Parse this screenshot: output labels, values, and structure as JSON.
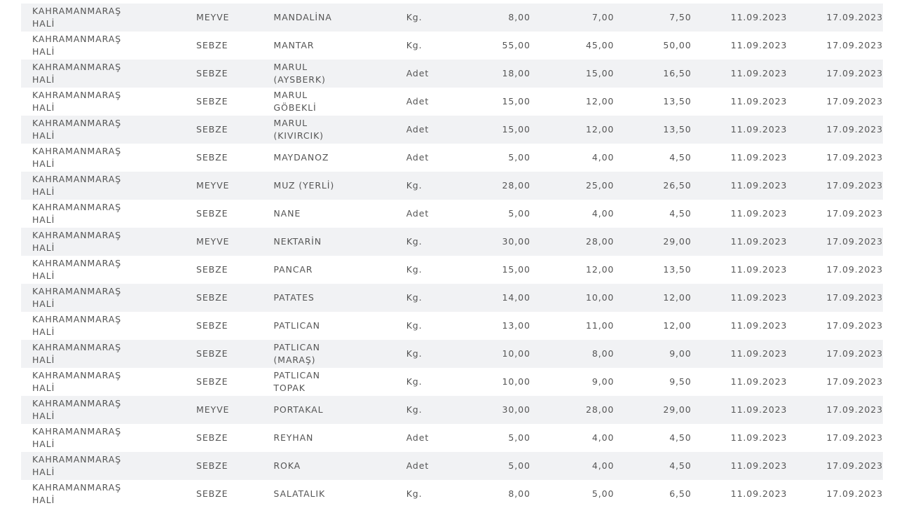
{
  "rows": [
    [
      "KAHRAMANMARAŞ\nHALİ",
      "MEYVE",
      "MANDALİNA",
      "Kg.",
      "8,00",
      "7,00",
      "7,50",
      "11.09.2023",
      "17.09.2023"
    ],
    [
      "KAHRAMANMARAŞ\nHALİ",
      "SEBZE",
      "MANTAR",
      "Kg.",
      "55,00",
      "45,00",
      "50,00",
      "11.09.2023",
      "17.09.2023"
    ],
    [
      "KAHRAMANMARAŞ\nHALİ",
      "SEBZE",
      "MARUL\n(AYSBERK)",
      "Adet",
      "18,00",
      "15,00",
      "16,50",
      "11.09.2023",
      "17.09.2023"
    ],
    [
      "KAHRAMANMARAŞ\nHALİ",
      "SEBZE",
      "MARUL\nGÖBEKLİ",
      "Adet",
      "15,00",
      "12,00",
      "13,50",
      "11.09.2023",
      "17.09.2023"
    ],
    [
      "KAHRAMANMARAŞ\nHALİ",
      "SEBZE",
      "MARUL\n(KIVIRCIK)",
      "Adet",
      "15,00",
      "12,00",
      "13,50",
      "11.09.2023",
      "17.09.2023"
    ],
    [
      "KAHRAMANMARAŞ\nHALİ",
      "SEBZE",
      "MAYDANOZ",
      "Adet",
      "5,00",
      "4,00",
      "4,50",
      "11.09.2023",
      "17.09.2023"
    ],
    [
      "KAHRAMANMARAŞ\nHALİ",
      "MEYVE",
      "MUZ (YERLİ)",
      "Kg.",
      "28,00",
      "25,00",
      "26,50",
      "11.09.2023",
      "17.09.2023"
    ],
    [
      "KAHRAMANMARAŞ\nHALİ",
      "SEBZE",
      "NANE",
      "Adet",
      "5,00",
      "4,00",
      "4,50",
      "11.09.2023",
      "17.09.2023"
    ],
    [
      "KAHRAMANMARAŞ\nHALİ",
      "MEYVE",
      "NEKTARİN",
      "Kg.",
      "30,00",
      "28,00",
      "29,00",
      "11.09.2023",
      "17.09.2023"
    ],
    [
      "KAHRAMANMARAŞ\nHALİ",
      "SEBZE",
      "PANCAR",
      "Kg.",
      "15,00",
      "12,00",
      "13,50",
      "11.09.2023",
      "17.09.2023"
    ],
    [
      "KAHRAMANMARAŞ\nHALİ",
      "SEBZE",
      "PATATES",
      "Kg.",
      "14,00",
      "10,00",
      "12,00",
      "11.09.2023",
      "17.09.2023"
    ],
    [
      "KAHRAMANMARAŞ\nHALİ",
      "SEBZE",
      "PATLICAN",
      "Kg.",
      "13,00",
      "11,00",
      "12,00",
      "11.09.2023",
      "17.09.2023"
    ],
    [
      "KAHRAMANMARAŞ\nHALİ",
      "SEBZE",
      "PATLICAN\n(MARAŞ)",
      "Kg.",
      "10,00",
      "8,00",
      "9,00",
      "11.09.2023",
      "17.09.2023"
    ],
    [
      "KAHRAMANMARAŞ\nHALİ",
      "SEBZE",
      "PATLICAN\nTOPAK",
      "Kg.",
      "10,00",
      "9,00",
      "9,50",
      "11.09.2023",
      "17.09.2023"
    ],
    [
      "KAHRAMANMARAŞ\nHALİ",
      "MEYVE",
      "PORTAKAL",
      "Kg.",
      "30,00",
      "28,00",
      "29,00",
      "11.09.2023",
      "17.09.2023"
    ],
    [
      "KAHRAMANMARAŞ\nHALİ",
      "SEBZE",
      "REYHAN",
      "Adet",
      "5,00",
      "4,00",
      "4,50",
      "11.09.2023",
      "17.09.2023"
    ],
    [
      "KAHRAMANMARAŞ\nHALİ",
      "SEBZE",
      "ROKA",
      "Adet",
      "5,00",
      "4,00",
      "4,50",
      "11.09.2023",
      "17.09.2023"
    ],
    [
      "KAHRAMANMARAŞ\nHALİ",
      "SEBZE",
      "SALATALIK",
      "Kg.",
      "8,00",
      "5,00",
      "6,50",
      "11.09.2023",
      "17.09.2023"
    ]
  ],
  "colors": {
    "stripe": "#f1f2f4",
    "text": "#555555"
  }
}
